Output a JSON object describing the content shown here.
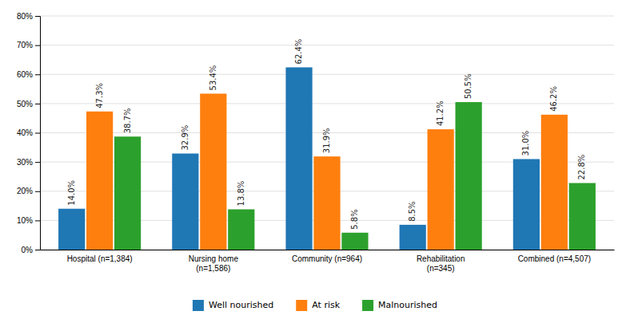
{
  "chart_data": {
    "type": "bar",
    "categories": [
      "Hospital (n=1,384)",
      "Nursing home\n(n=1,586)",
      "Community (n=964)",
      "Rehabilitation\n(n=345)",
      "Combined (n=4,507)"
    ],
    "series": [
      {
        "name": "Well nourished",
        "values": [
          14.0,
          32.9,
          62.4,
          8.5,
          31.0
        ],
        "value_labels": [
          "14.0%",
          "32.9%",
          "62.4%",
          "8.5%",
          "31.0%"
        ]
      },
      {
        "name": "At risk",
        "values": [
          47.3,
          53.4,
          31.9,
          41.2,
          46.2
        ],
        "value_labels": [
          "47.3%",
          "53.4%",
          "31.9%",
          "41.2%",
          "46.2%"
        ]
      },
      {
        "name": "Malnourished",
        "values": [
          38.7,
          13.8,
          5.8,
          50.5,
          22.8
        ],
        "value_labels": [
          "38.7%",
          "13.8%",
          "5.8%",
          "50.5%",
          "22.8%"
        ]
      }
    ],
    "ylim": [
      0,
      80
    ],
    "yticks": [
      {
        "value": 0,
        "label": "0%"
      },
      {
        "value": 10,
        "label": "10%"
      },
      {
        "value": 20,
        "label": "20%"
      },
      {
        "value": 30,
        "label": "30%"
      },
      {
        "value": 40,
        "label": "40%"
      },
      {
        "value": 50,
        "label": "50%"
      },
      {
        "value": 60,
        "label": "60%"
      },
      {
        "value": 70,
        "label": "70%"
      },
      {
        "value": 80,
        "label": "80%"
      }
    ],
    "grid": true,
    "data_labels": true,
    "legend": "bottom"
  }
}
